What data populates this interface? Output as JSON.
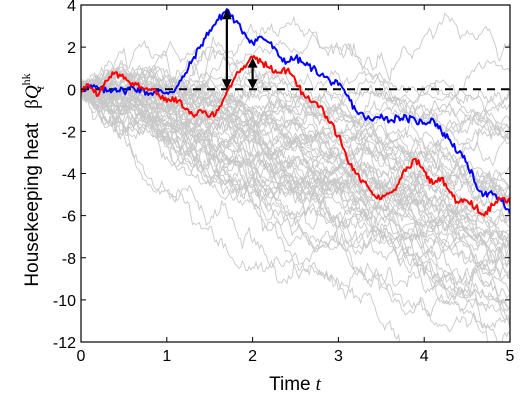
{
  "chart_data": {
    "type": "line",
    "title": "",
    "xlabel": {
      "text": "Time",
      "var": "t"
    },
    "ylabel": {
      "text": "Housekeeping heat",
      "beta": "β",
      "Q": "Q",
      "sup": "hk",
      "sub": "t"
    },
    "xlim": [
      0,
      5
    ],
    "ylim": [
      -12,
      4
    ],
    "x_ticks": [
      0,
      1,
      2,
      3,
      4,
      5
    ],
    "y_ticks": [
      -12,
      -10,
      -8,
      -6,
      -4,
      -2,
      0,
      2,
      4
    ],
    "grid": false,
    "legend": "none",
    "reference_line": {
      "y": 0,
      "style": "dashed",
      "color": "#000000"
    },
    "background_trajectories": {
      "count": 55,
      "color": "#c8c8c8",
      "mean_drift_per_unit_time": -1.3,
      "end_range": [
        -11.5,
        -1.0
      ]
    },
    "series": [
      {
        "color": "#0000ff",
        "points": [
          [
            0,
            0
          ],
          [
            0.1,
            0.1
          ],
          [
            0.2,
            0.05
          ],
          [
            0.3,
            -0.1
          ],
          [
            0.4,
            0.05
          ],
          [
            0.5,
            -0.1
          ],
          [
            0.6,
            0.1
          ],
          [
            0.7,
            -0.05
          ],
          [
            0.8,
            -0.2
          ],
          [
            0.9,
            -0.1
          ],
          [
            1.0,
            -0.15
          ],
          [
            1.1,
            0.0
          ],
          [
            1.2,
            0.6
          ],
          [
            1.3,
            1.4
          ],
          [
            1.4,
            2.1
          ],
          [
            1.5,
            2.8
          ],
          [
            1.6,
            3.3
          ],
          [
            1.7,
            3.8
          ],
          [
            1.8,
            3.2
          ],
          [
            1.9,
            2.7
          ],
          [
            2.0,
            2.2
          ],
          [
            2.1,
            2.5
          ],
          [
            2.2,
            2.2
          ],
          [
            2.3,
            1.6
          ],
          [
            2.4,
            1.3
          ],
          [
            2.5,
            1.5
          ],
          [
            2.6,
            1.2
          ],
          [
            2.7,
            1.0
          ],
          [
            2.8,
            0.7
          ],
          [
            2.9,
            0.4
          ],
          [
            3.0,
            0.2
          ],
          [
            3.1,
            -0.3
          ],
          [
            3.2,
            -1.0
          ],
          [
            3.3,
            -1.3
          ],
          [
            3.4,
            -1.5
          ],
          [
            3.5,
            -1.2
          ],
          [
            3.6,
            -1.5
          ],
          [
            3.7,
            -1.3
          ],
          [
            3.8,
            -1.4
          ],
          [
            3.9,
            -1.5
          ],
          [
            4.0,
            -1.6
          ],
          [
            4.1,
            -1.4
          ],
          [
            4.2,
            -2.0
          ],
          [
            4.3,
            -2.4
          ],
          [
            4.4,
            -3.0
          ],
          [
            4.5,
            -3.5
          ],
          [
            4.6,
            -4.5
          ],
          [
            4.7,
            -5.0
          ],
          [
            4.8,
            -5.0
          ],
          [
            4.9,
            -5.3
          ],
          [
            5.0,
            -5.9
          ]
        ]
      },
      {
        "color": "#ff0000",
        "points": [
          [
            0,
            0
          ],
          [
            0.1,
            0.1
          ],
          [
            0.2,
            -0.3
          ],
          [
            0.3,
            0.4
          ],
          [
            0.4,
            0.8
          ],
          [
            0.5,
            0.5
          ],
          [
            0.6,
            0.3
          ],
          [
            0.7,
            0.1
          ],
          [
            0.8,
            0.0
          ],
          [
            0.9,
            -0.2
          ],
          [
            1.0,
            -0.6
          ],
          [
            1.1,
            -0.4
          ],
          [
            1.2,
            -0.9
          ],
          [
            1.3,
            -1.2
          ],
          [
            1.4,
            -1.0
          ],
          [
            1.5,
            -1.3
          ],
          [
            1.6,
            -1.0
          ],
          [
            1.7,
            -0.1
          ],
          [
            1.8,
            0.6
          ],
          [
            1.9,
            1.1
          ],
          [
            2.0,
            1.5
          ],
          [
            2.1,
            1.3
          ],
          [
            2.2,
            1.0
          ],
          [
            2.3,
            0.8
          ],
          [
            2.4,
            0.9
          ],
          [
            2.5,
            0.4
          ],
          [
            2.6,
            -0.3
          ],
          [
            2.7,
            -0.6
          ],
          [
            2.8,
            -0.8
          ],
          [
            2.9,
            -1.6
          ],
          [
            3.0,
            -2.2
          ],
          [
            3.1,
            -3.3
          ],
          [
            3.2,
            -4.0
          ],
          [
            3.3,
            -4.4
          ],
          [
            3.4,
            -5.0
          ],
          [
            3.5,
            -5.2
          ],
          [
            3.6,
            -4.9
          ],
          [
            3.7,
            -4.5
          ],
          [
            3.8,
            -3.7
          ],
          [
            3.9,
            -3.3
          ],
          [
            4.0,
            -3.9
          ],
          [
            4.1,
            -4.5
          ],
          [
            4.2,
            -4.2
          ],
          [
            4.3,
            -4.9
          ],
          [
            4.4,
            -5.4
          ],
          [
            4.5,
            -5.3
          ],
          [
            4.6,
            -5.6
          ],
          [
            4.7,
            -6.0
          ],
          [
            4.8,
            -5.5
          ],
          [
            4.9,
            -5.2
          ],
          [
            5.0,
            -5.4
          ]
        ]
      }
    ],
    "annotations": [
      {
        "type": "double-arrow",
        "x": 1.7,
        "y_from": 0,
        "y_to": 3.8,
        "color": "#000000"
      },
      {
        "type": "double-arrow",
        "x": 2.0,
        "y_from": 0,
        "y_to": 1.5,
        "color": "#000000"
      }
    ]
  }
}
